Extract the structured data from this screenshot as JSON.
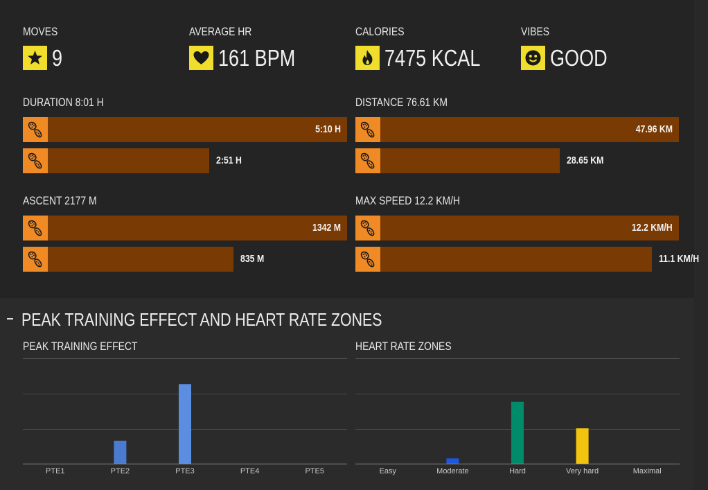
{
  "stats": [
    {
      "label": "MOVES",
      "value": "9",
      "icon": "star-icon"
    },
    {
      "label": "AVERAGE HR",
      "value": "161 BPM",
      "icon": "heart-icon"
    },
    {
      "label": "CALORIES",
      "value": "7475 KCAL",
      "icon": "flame-icon"
    },
    {
      "label": "VIBES",
      "value": "GOOD",
      "icon": "smiley-icon"
    }
  ],
  "metrics": [
    {
      "title": "DURATION 8:01 H",
      "rows": [
        {
          "label": "5:10 H",
          "fraction": 1.0,
          "icon": "shoe-print-icon"
        },
        {
          "label": "2:51 H",
          "fraction": 0.54,
          "icon": "shoe-print-icon"
        }
      ]
    },
    {
      "title": "DISTANCE 76.61 KM",
      "rows": [
        {
          "label": "47.96 KM",
          "fraction": 1.0,
          "icon": "shoe-print-icon"
        },
        {
          "label": "28.65 KM",
          "fraction": 0.6,
          "icon": "shoe-print-icon"
        }
      ]
    },
    {
      "title": "ASCENT 2177 M",
      "rows": [
        {
          "label": "1342 M",
          "fraction": 1.0,
          "icon": "shoe-print-icon"
        },
        {
          "label": "835 M",
          "fraction": 0.62,
          "icon": "shoe-print-icon"
        }
      ]
    },
    {
      "title": "MAX SPEED 12.2 KM/H",
      "rows": [
        {
          "label": "12.2 KM/H",
          "fraction": 1.0,
          "icon": "shoe-print-icon"
        },
        {
          "label": "11.1 KM/H",
          "fraction": 0.91,
          "icon": "shoe-print-icon"
        }
      ]
    }
  ],
  "section": {
    "title": "PEAK TRAINING EFFECT AND HEART RATE ZONES",
    "collapse_icon": "minus-icon"
  },
  "colors": {
    "accent_yellow": "#f1dd2c",
    "bar_fill": "#7a3a04",
    "shoe_icon_bg": "#f08a25"
  },
  "chart_data": [
    {
      "type": "bar",
      "title": "PEAK TRAINING EFFECT",
      "categories": [
        "PTE1",
        "PTE2",
        "PTE3",
        "PTE4",
        "PTE5"
      ],
      "values": [
        0,
        1.3,
        4.5,
        0,
        0
      ],
      "colors": [
        "#5b8ee0",
        "#4a7bd0",
        "#5b8ee0",
        "#5b8ee0",
        "#5b8ee0"
      ],
      "ylim": [
        0,
        6
      ],
      "grid": true
    },
    {
      "type": "bar",
      "title": "HEART RATE ZONES",
      "categories": [
        "Easy",
        "Moderate",
        "Hard",
        "Very hard",
        "Maximal"
      ],
      "values": [
        0,
        0.3,
        3.5,
        2.0,
        0
      ],
      "colors": [
        "#888888",
        "#1f56e0",
        "#008b6a",
        "#f1c40f",
        "#c0392b"
      ],
      "ylim": [
        0,
        6
      ],
      "grid": true
    }
  ]
}
